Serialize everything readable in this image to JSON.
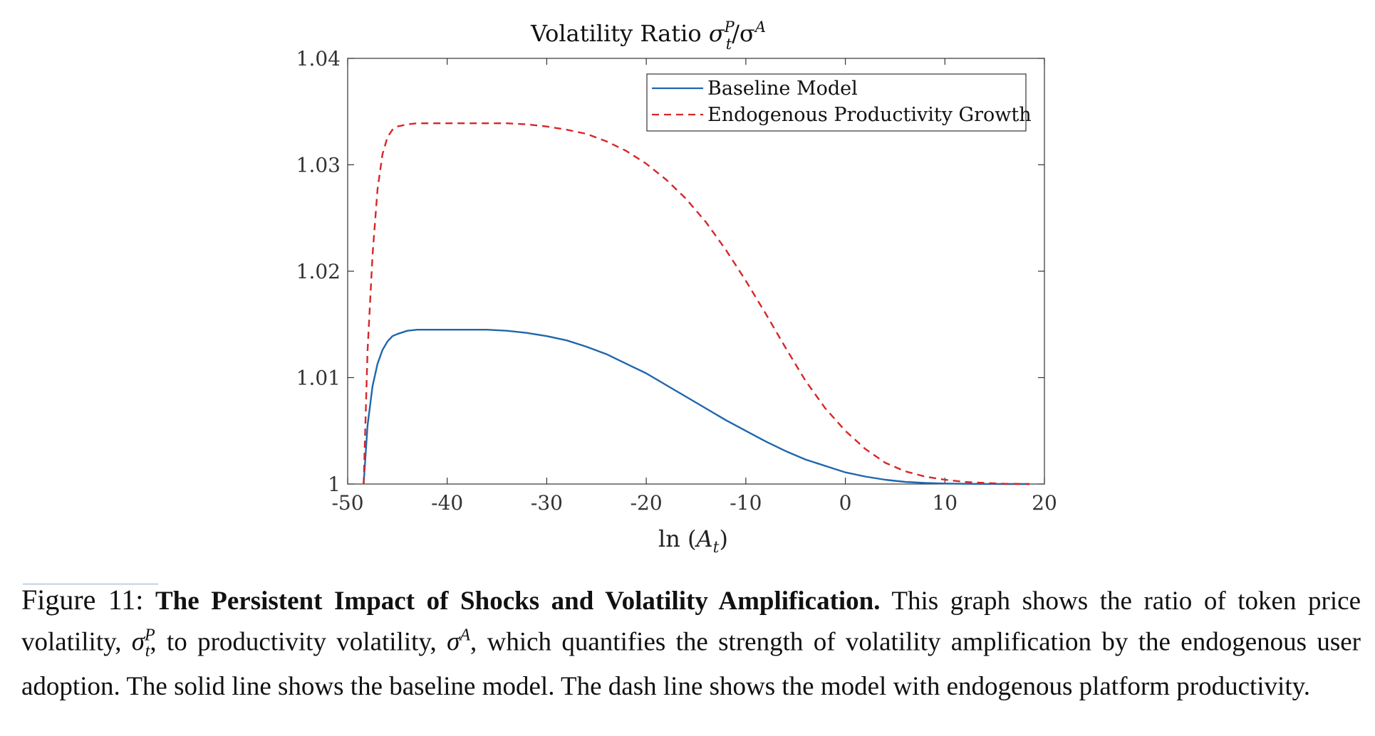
{
  "chart_data": {
    "type": "line",
    "title": "Volatility Ratio σtP/σA",
    "title_parts": {
      "main": "Volatility Ratio ",
      "sym": "σ",
      "sup": "P",
      "sub": "t",
      "sep": "/σ",
      "sup2": "A"
    },
    "xlabel": "ln (At)",
    "xlabel_parts": {
      "main": "ln (",
      "sym": "A",
      "sub": "t",
      "close": ")"
    },
    "ylabel": "",
    "xlim": [
      -50,
      20
    ],
    "ylim": [
      1.0,
      1.04
    ],
    "x_ticks": [
      -50,
      -40,
      -30,
      -20,
      -10,
      0,
      10,
      20
    ],
    "x_tick_labels": [
      "-50",
      "-40",
      "-30",
      "-20",
      "-10",
      "0",
      "10",
      "20"
    ],
    "y_ticks": [
      1.0,
      1.01,
      1.02,
      1.03,
      1.04
    ],
    "y_tick_labels": [
      "1",
      "1.01",
      "1.02",
      "1.03",
      "1.04"
    ],
    "grid": false,
    "legend_placement": "top-right",
    "series": [
      {
        "name": "Baseline Model",
        "style": "solid",
        "color": "#2166ac",
        "x": [
          -48.4,
          -48.0,
          -47.5,
          -47.0,
          -46.5,
          -46.0,
          -45.5,
          -45.0,
          -44.0,
          -43.0,
          -42.0,
          -40.0,
          -38.0,
          -36.0,
          -34.0,
          -32.0,
          -30.0,
          -28.0,
          -26.0,
          -24.0,
          -22.0,
          -20.0,
          -18.0,
          -16.0,
          -14.0,
          -12.0,
          -10.0,
          -8.0,
          -6.0,
          -4.0,
          -2.0,
          0.0,
          2.0,
          4.0,
          6.0,
          8.0,
          10.0,
          12.0,
          14.0,
          16.0,
          18.5
        ],
        "y": [
          1.0,
          1.0055,
          1.0092,
          1.0113,
          1.0126,
          1.0134,
          1.0139,
          1.0141,
          1.0144,
          1.0145,
          1.0145,
          1.0145,
          1.0145,
          1.0145,
          1.0144,
          1.0142,
          1.0139,
          1.0135,
          1.0129,
          1.0122,
          1.0113,
          1.0104,
          1.0093,
          1.0082,
          1.0071,
          1.006,
          1.005,
          1.004,
          1.0031,
          1.0023,
          1.0017,
          1.0011,
          1.0007,
          1.0004,
          1.0002,
          1.0001,
          1.00005,
          1.00002,
          1.00001,
          1.0,
          1.0
        ]
      },
      {
        "name": "Endogenous Productivity Growth",
        "style": "dashed",
        "color": "#d62728",
        "x": [
          -48.4,
          -48.0,
          -47.5,
          -47.0,
          -46.5,
          -46.0,
          -45.5,
          -45.0,
          -44.0,
          -43.0,
          -42.0,
          -40.0,
          -38.0,
          -36.0,
          -34.0,
          -32.0,
          -30.0,
          -28.0,
          -26.0,
          -24.0,
          -22.0,
          -20.0,
          -18.0,
          -16.0,
          -14.0,
          -12.0,
          -10.0,
          -8.0,
          -6.0,
          -4.0,
          -2.0,
          0.0,
          2.0,
          4.0,
          6.0,
          8.0,
          10.0,
          12.0,
          14.0,
          16.0,
          18.5
        ],
        "y": [
          1.0,
          1.0125,
          1.0215,
          1.0277,
          1.031,
          1.0326,
          1.0333,
          1.0336,
          1.0338,
          1.0339,
          1.0339,
          1.0339,
          1.0339,
          1.0339,
          1.0339,
          1.0338,
          1.0336,
          1.0333,
          1.0329,
          1.0322,
          1.0313,
          1.0301,
          1.0286,
          1.0268,
          1.0246,
          1.022,
          1.0191,
          1.016,
          1.0128,
          1.0097,
          1.0071,
          1.005,
          1.0033,
          1.002,
          1.0012,
          1.0007,
          1.0004,
          1.0002,
          1.0001,
          1.00003,
          1.0
        ]
      }
    ]
  },
  "caption": {
    "figure_label": "Figure 11:",
    "bold_title": "The Persistent Impact of Shocks and Volatility Amplification.",
    "t1": " This graph shows the ratio of token price volatility, ",
    "m1_sym": "σ",
    "m1_sup": "P",
    "m1_sub": "t",
    "t2": ", to productivity volatility, ",
    "m2_sym": "σ",
    "m2_sup": "A",
    "t3": ", which quantifies the strength of volatility amplification by the endogenous user adoption. The solid line shows the baseline model. The dash line shows the model with endogenous platform productivity."
  }
}
